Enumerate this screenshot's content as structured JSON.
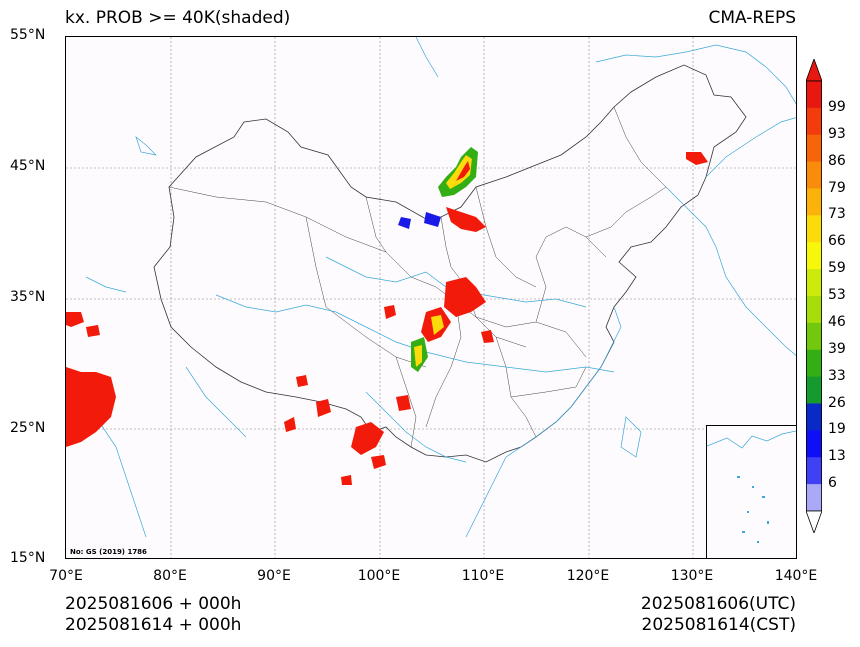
{
  "title_left": "kx. PROB >= 40K(shaded)",
  "title_right": "CMA-REPS",
  "lat_ticks": [
    "55°N",
    "45°N",
    "35°N",
    "25°N",
    "15°N"
  ],
  "lon_ticks": [
    "70°E",
    "80°E",
    "90°E",
    "100°E",
    "110°E",
    "120°E",
    "130°E",
    "140°E"
  ],
  "footer_left_line1": "2025081606  +  000h",
  "footer_left_line2": "2025081614  +  000h",
  "footer_right_line1": "2025081606(UTC)",
  "footer_right_line2": "2025081614(CST)",
  "source_note": "No: GS (2019) 1786",
  "colorbar": {
    "labels": [
      "99",
      "93",
      "86",
      "79",
      "73",
      "66",
      "59",
      "53",
      "46",
      "39",
      "33",
      "26",
      "19",
      "13",
      "6"
    ],
    "colors": [
      "#e8170f",
      "#f23c0b",
      "#f7650a",
      "#f98c0b",
      "#fbb30b",
      "#fbdb0b",
      "#f6f70b",
      "#ccea0b",
      "#a7dd0b",
      "#72c80d",
      "#33ae14",
      "#159a2e",
      "#0a2ac8",
      "#0f0ff7",
      "#4040f4",
      "#a9a9f8"
    ],
    "over_color": "#e8170f",
    "under_color": "#ffffff"
  },
  "colors": {
    "coastline": "#3aa8d8",
    "border": "#333333",
    "grid": "#888888",
    "high_prob": "#f21a0a"
  }
}
